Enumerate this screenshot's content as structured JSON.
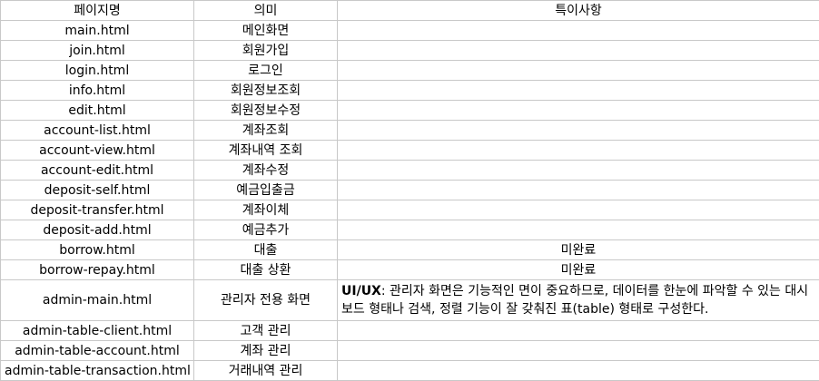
{
  "headers": [
    "페이지명",
    "의미",
    "특이사항"
  ],
  "rows": [
    {
      "page": "main.html",
      "meaning": "메인화면",
      "note": ""
    },
    {
      "page": "join.html",
      "meaning": "회원가입",
      "note": ""
    },
    {
      "page": "login.html",
      "meaning": "로그인",
      "note": ""
    },
    {
      "page": "info.html",
      "meaning": "회원정보조회",
      "note": ""
    },
    {
      "page": "edit.html",
      "meaning": "회원정보수정",
      "note": ""
    },
    {
      "page": "account-list.html",
      "meaning": "계좌조회",
      "note": ""
    },
    {
      "page": "account-view.html",
      "meaning": "계좌내역 조회",
      "note": ""
    },
    {
      "page": "account-edit.html",
      "meaning": "계좌수정",
      "note": ""
    },
    {
      "page": "deposit-self.html",
      "meaning": "예금입출금",
      "note": ""
    },
    {
      "page": "deposit-transfer.html",
      "meaning": "계좌이체",
      "note": ""
    },
    {
      "page": "deposit-add.html",
      "meaning": "예금추가",
      "note": ""
    },
    {
      "page": "borrow.html",
      "meaning": "대출",
      "note": "미완료"
    },
    {
      "page": "borrow-repay.html",
      "meaning": "대출 상환",
      "note": "미완료"
    },
    {
      "page": "admin-main.html",
      "meaning": "관리자 전용 화면",
      "note_bold": "UI/UX",
      "note_rest": ": 관리자 화면은 기능적인 면이 중요하므로, 데이터를 한눈에 파악할 수 있는 대시보드 형태나 검색, 정렬 기능이 잘 갖춰진 표(table) 형태로 구성한다."
    },
    {
      "page": "admin-table-client.html",
      "meaning": "고객 관리",
      "note": ""
    },
    {
      "page": "admin-table-account.html",
      "meaning": "계좌 관리",
      "note": ""
    },
    {
      "page": "admin-table-transaction.html",
      "meaning": "거래내역 관리",
      "note": ""
    }
  ]
}
